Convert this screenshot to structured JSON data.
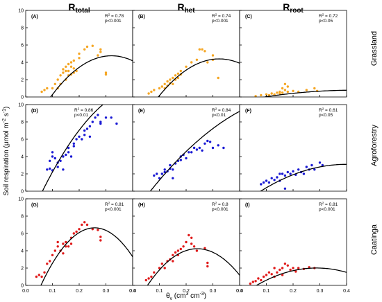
{
  "figure": {
    "column_titles": [
      {
        "main": "R",
        "sub": "total"
      },
      {
        "main": "R",
        "sub": "het"
      },
      {
        "main": "R",
        "sub": "root"
      }
    ],
    "row_labels": [
      "Grassland",
      "Agroforestry",
      "Caatinga"
    ],
    "ylabel": {
      "text": "Soil respiration (μmol m",
      "sup1": "-2",
      "mid": " s",
      "sup2": "-1",
      "end": ")"
    },
    "xlabel": {
      "main": "θ",
      "sub": "v",
      "mid": " (cm",
      "sup1": "3",
      "mid2": " cm",
      "sup2": "-3",
      "end": ")"
    },
    "colors": {
      "grassland": "#f5a623",
      "agroforestry": "#1a1ad4",
      "caatinga": "#e01b1b",
      "fit": "#000000"
    }
  },
  "chart_data": [
    {
      "type": "scatter",
      "row": 0,
      "col": 0,
      "panel_label": "(A)",
      "r2": "0.78",
      "p": "p<0.001",
      "color": "#f5a623",
      "xlim": [
        0,
        0.4
      ],
      "ylim": [
        0,
        10
      ],
      "xticks": [
        "0.0",
        "0.1",
        "0.2",
        "0.3",
        "0.4"
      ],
      "yticks": [
        "0",
        "2",
        "4",
        "6",
        "8",
        "10"
      ],
      "points": [
        [
          0.06,
          0.6
        ],
        [
          0.07,
          0.8
        ],
        [
          0.08,
          1.0
        ],
        [
          0.1,
          1.0
        ],
        [
          0.11,
          1.5
        ],
        [
          0.12,
          2.0
        ],
        [
          0.12,
          1.0
        ],
        [
          0.13,
          2.5
        ],
        [
          0.13,
          1.5
        ],
        [
          0.14,
          2.8
        ],
        [
          0.14,
          3.2
        ],
        [
          0.15,
          3.0
        ],
        [
          0.15,
          2.0
        ],
        [
          0.15,
          3.5
        ],
        [
          0.16,
          3.8
        ],
        [
          0.16,
          2.5
        ],
        [
          0.16,
          3.0
        ],
        [
          0.17,
          4.0
        ],
        [
          0.17,
          3.5
        ],
        [
          0.17,
          2.6
        ],
        [
          0.18,
          4.2
        ],
        [
          0.18,
          3.3
        ],
        [
          0.18,
          2.8
        ],
        [
          0.19,
          3.0
        ],
        [
          0.2,
          4.5
        ],
        [
          0.2,
          5.0
        ],
        [
          0.22,
          5.5
        ],
        [
          0.23,
          5.8
        ],
        [
          0.25,
          5.9
        ],
        [
          0.27,
          4.8
        ],
        [
          0.28,
          5.2
        ],
        [
          0.28,
          5.5
        ],
        [
          0.3,
          2.8
        ],
        [
          0.3,
          2.6
        ]
      ],
      "curve": {
        "a": -4.7,
        "b": 59.0,
        "c": -92.0,
        "xmin": 0.04,
        "xmax": 0.4
      }
    },
    {
      "type": "scatter",
      "row": 0,
      "col": 1,
      "panel_label": "(B)",
      "r2": "0.74",
      "p": "p<0.001",
      "color": "#f5a623",
      "xlim": [
        0,
        0.4
      ],
      "ylim": [
        0,
        10
      ],
      "xticks": [
        "0.0",
        "0.1",
        "0.2",
        "0.3",
        "0.4"
      ],
      "yticks": [
        "0",
        "2",
        "4",
        "6",
        "8",
        "10"
      ],
      "points": [
        [
          0.06,
          0.4
        ],
        [
          0.07,
          0.6
        ],
        [
          0.08,
          0.8
        ],
        [
          0.1,
          1.0
        ],
        [
          0.11,
          1.2
        ],
        [
          0.12,
          1.5
        ],
        [
          0.12,
          1.0
        ],
        [
          0.13,
          1.8
        ],
        [
          0.13,
          1.3
        ],
        [
          0.14,
          2.0
        ],
        [
          0.14,
          1.6
        ],
        [
          0.15,
          2.2
        ],
        [
          0.15,
          1.5
        ],
        [
          0.16,
          2.5
        ],
        [
          0.16,
          2.0
        ],
        [
          0.17,
          2.7
        ],
        [
          0.17,
          2.2
        ],
        [
          0.18,
          3.0
        ],
        [
          0.18,
          2.6
        ],
        [
          0.2,
          3.5
        ],
        [
          0.22,
          4.0
        ],
        [
          0.24,
          4.3
        ],
        [
          0.25,
          5.5
        ],
        [
          0.26,
          5.5
        ],
        [
          0.27,
          5.3
        ],
        [
          0.28,
          4.0
        ],
        [
          0.3,
          4.8
        ],
        [
          0.3,
          4.3
        ],
        [
          0.32,
          2.2
        ]
      ],
      "curve": {
        "a": -4.5,
        "b": 55.0,
        "c": -85.0,
        "xmin": 0.04,
        "xmax": 0.4
      }
    },
    {
      "type": "scatter",
      "row": 0,
      "col": 2,
      "panel_label": "(C)",
      "r2": "0.72",
      "p": "p<0.05",
      "color": "#f5a623",
      "xlim": [
        0,
        0.4
      ],
      "ylim": [
        0,
        10
      ],
      "xticks": [
        "0.0",
        "0.1",
        "0.2",
        "0.3",
        "0.4"
      ],
      "yticks": [
        "0",
        "2",
        "4",
        "6",
        "8",
        "10"
      ],
      "points": [
        [
          0.06,
          0.1
        ],
        [
          0.08,
          0.2
        ],
        [
          0.1,
          0.3
        ],
        [
          0.11,
          0.2
        ],
        [
          0.12,
          0.4
        ],
        [
          0.13,
          0.3
        ],
        [
          0.14,
          0.5
        ],
        [
          0.15,
          0.4
        ],
        [
          0.15,
          0.6
        ],
        [
          0.16,
          0.5
        ],
        [
          0.16,
          1.0
        ],
        [
          0.17,
          1.5
        ],
        [
          0.17,
          0.8
        ],
        [
          0.18,
          0.6
        ],
        [
          0.18,
          1.2
        ],
        [
          0.2,
          0.7
        ],
        [
          0.22,
          0.6
        ],
        [
          0.25,
          0.8
        ],
        [
          0.28,
          1.0
        ],
        [
          0.29,
          0.7
        ]
      ],
      "curve": {
        "a": -0.5,
        "b": 6.0,
        "c": -7.0,
        "xmin": 0.04,
        "xmax": 0.4
      }
    },
    {
      "type": "scatter",
      "row": 1,
      "col": 0,
      "panel_label": "(D)",
      "r2": "0.86",
      "p": "p<0.01",
      "color": "#1a1ad4",
      "xlim": [
        0,
        0.4
      ],
      "ylim": [
        0,
        10
      ],
      "xticks": [
        "0.0",
        "0.1",
        "0.2",
        "0.3",
        "0.4"
      ],
      "yticks": [
        "0",
        "2",
        "4",
        "6",
        "8",
        "10"
      ],
      "points": [
        [
          0.08,
          2.5
        ],
        [
          0.09,
          2.6
        ],
        [
          0.09,
          3.5
        ],
        [
          0.1,
          4.0
        ],
        [
          0.1,
          4.5
        ],
        [
          0.1,
          2.4
        ],
        [
          0.11,
          3.8
        ],
        [
          0.12,
          3.3
        ],
        [
          0.12,
          2.8
        ],
        [
          0.13,
          3.5
        ],
        [
          0.14,
          4.0
        ],
        [
          0.14,
          2.5
        ],
        [
          0.15,
          4.2
        ],
        [
          0.16,
          4.5
        ],
        [
          0.16,
          5.0
        ],
        [
          0.17,
          4.0
        ],
        [
          0.18,
          5.2
        ],
        [
          0.18,
          5.5
        ],
        [
          0.19,
          6.0
        ],
        [
          0.2,
          6.3
        ],
        [
          0.21,
          6.0
        ],
        [
          0.22,
          6.5
        ],
        [
          0.22,
          7.0
        ],
        [
          0.23,
          7.2
        ],
        [
          0.24,
          7.5
        ],
        [
          0.24,
          6.3
        ],
        [
          0.25,
          8.0
        ],
        [
          0.26,
          8.5
        ],
        [
          0.27,
          8.8
        ],
        [
          0.28,
          8.0
        ],
        [
          0.28,
          7.8
        ],
        [
          0.3,
          8.5
        ],
        [
          0.32,
          8.5
        ],
        [
          0.34,
          7.8
        ]
      ],
      "curve": {
        "a": -4.2,
        "b": 72.0,
        "c": -79.0,
        "xmin": 0.04,
        "xmax": 0.4
      }
    },
    {
      "type": "scatter",
      "row": 1,
      "col": 1,
      "panel_label": "(E)",
      "r2": "0.84",
      "p": "p<0.01",
      "color": "#1a1ad4",
      "xlim": [
        0,
        0.4
      ],
      "ylim": [
        0,
        10
      ],
      "xticks": [
        "0.0",
        "0.1",
        "0.2",
        "0.3",
        "0.4"
      ],
      "yticks": [
        "0",
        "2",
        "4",
        "6",
        "8",
        "10"
      ],
      "points": [
        [
          0.08,
          1.8
        ],
        [
          0.09,
          2.0
        ],
        [
          0.1,
          1.5
        ],
        [
          0.11,
          2.0
        ],
        [
          0.12,
          2.2
        ],
        [
          0.12,
          2.5
        ],
        [
          0.13,
          2.3
        ],
        [
          0.14,
          3.0
        ],
        [
          0.14,
          2.6
        ],
        [
          0.15,
          2.5
        ],
        [
          0.15,
          1.5
        ],
        [
          0.16,
          3.2
        ],
        [
          0.17,
          3.5
        ],
        [
          0.18,
          3.6
        ],
        [
          0.18,
          4.0
        ],
        [
          0.19,
          4.2
        ],
        [
          0.2,
          3.8
        ],
        [
          0.21,
          4.5
        ],
        [
          0.22,
          4.5
        ],
        [
          0.23,
          5.0
        ],
        [
          0.24,
          4.8
        ],
        [
          0.25,
          5.0
        ],
        [
          0.26,
          4.7
        ],
        [
          0.27,
          5.5
        ],
        [
          0.28,
          5.8
        ],
        [
          0.29,
          5.7
        ],
        [
          0.3,
          5.0
        ],
        [
          0.32,
          5.3
        ],
        [
          0.34,
          5.0
        ]
      ],
      "curve": {
        "a": -2.7,
        "b": 43.0,
        "c": -33.0,
        "xmin": 0.04,
        "xmax": 0.4
      }
    },
    {
      "type": "scatter",
      "row": 1,
      "col": 2,
      "panel_label": "(F)",
      "r2": "0.61",
      "p": "p<0.05",
      "color": "#1a1ad4",
      "xlim": [
        0,
        0.4
      ],
      "ylim": [
        0,
        10
      ],
      "xticks": [
        "0.0",
        "0.1",
        "0.2",
        "0.3",
        "0.4"
      ],
      "yticks": [
        "0",
        "2",
        "4",
        "6",
        "8",
        "10"
      ],
      "points": [
        [
          0.08,
          0.8
        ],
        [
          0.09,
          1.0
        ],
        [
          0.1,
          1.2
        ],
        [
          0.11,
          1.0
        ],
        [
          0.12,
          1.5
        ],
        [
          0.13,
          1.3
        ],
        [
          0.14,
          1.6
        ],
        [
          0.15,
          2.0
        ],
        [
          0.15,
          1.2
        ],
        [
          0.16,
          2.0
        ],
        [
          0.17,
          1.8
        ],
        [
          0.17,
          0.3
        ],
        [
          0.18,
          2.2
        ],
        [
          0.19,
          2.0
        ],
        [
          0.2,
          2.3
        ],
        [
          0.21,
          1.9
        ],
        [
          0.22,
          2.5
        ],
        [
          0.23,
          2.2
        ],
        [
          0.24,
          2.0
        ],
        [
          0.25,
          2.8
        ],
        [
          0.26,
          2.5
        ],
        [
          0.27,
          3.0
        ],
        [
          0.28,
          2.5
        ],
        [
          0.3,
          3.3
        ],
        [
          0.31,
          3.0
        ]
      ],
      "curve": {
        "a": -1.7,
        "b": 24.0,
        "c": -30.0,
        "xmin": 0.04,
        "xmax": 0.4
      }
    },
    {
      "type": "scatter",
      "row": 2,
      "col": 0,
      "panel_label": "(G)",
      "r2": "0.81",
      "p": "p<0.001",
      "color": "#e01b1b",
      "xlim": [
        0,
        0.4
      ],
      "ylim": [
        0,
        10
      ],
      "xticks": [
        "0.0",
        "0.1",
        "0.2",
        "0.3",
        "0.4"
      ],
      "yticks": [
        "0",
        "2",
        "4",
        "6",
        "8",
        "10"
      ],
      "points": [
        [
          0.04,
          1.0
        ],
        [
          0.05,
          1.2
        ],
        [
          0.06,
          1.0
        ],
        [
          0.07,
          1.5
        ],
        [
          0.08,
          2.5
        ],
        [
          0.09,
          2.8
        ],
        [
          0.1,
          3.5
        ],
        [
          0.11,
          4.0
        ],
        [
          0.12,
          4.5
        ],
        [
          0.12,
          5.0
        ],
        [
          0.13,
          4.0
        ],
        [
          0.14,
          3.7
        ],
        [
          0.14,
          4.8
        ],
        [
          0.15,
          4.5
        ],
        [
          0.15,
          5.0
        ],
        [
          0.16,
          4.5
        ],
        [
          0.17,
          4.8
        ],
        [
          0.17,
          5.5
        ],
        [
          0.18,
          6.0
        ],
        [
          0.19,
          6.2
        ],
        [
          0.2,
          6.5
        ],
        [
          0.21,
          7.0
        ],
        [
          0.22,
          7.3
        ],
        [
          0.23,
          7.0
        ],
        [
          0.25,
          6.5
        ],
        [
          0.27,
          6.4
        ],
        [
          0.28,
          5.6
        ],
        [
          0.28,
          5.2
        ]
      ],
      "curve": {
        "a": -4.3,
        "b": 85.0,
        "c": -165.0,
        "xmin": 0.04,
        "xmax": 0.4
      }
    },
    {
      "type": "scatter",
      "row": 2,
      "col": 1,
      "panel_label": "(H)",
      "r2": "0.8",
      "p": "p<0.001",
      "color": "#e01b1b",
      "xlim": [
        0,
        0.4
      ],
      "ylim": [
        0,
        10
      ],
      "xticks": [
        "0.0",
        "0.1",
        "0.2",
        "0.3",
        "0.4"
      ],
      "yticks": [
        "0",
        "2",
        "4",
        "6",
        "8",
        "10"
      ],
      "points": [
        [
          0.05,
          0.6
        ],
        [
          0.06,
          0.8
        ],
        [
          0.07,
          1.0
        ],
        [
          0.08,
          1.5
        ],
        [
          0.1,
          2.0
        ],
        [
          0.11,
          2.5
        ],
        [
          0.12,
          2.0
        ],
        [
          0.13,
          2.8
        ],
        [
          0.14,
          3.0
        ],
        [
          0.15,
          3.5
        ],
        [
          0.15,
          2.8
        ],
        [
          0.16,
          3.8
        ],
        [
          0.17,
          3.5
        ],
        [
          0.17,
          4.0
        ],
        [
          0.18,
          4.2
        ],
        [
          0.19,
          4.5
        ],
        [
          0.2,
          5.0
        ],
        [
          0.21,
          5.8
        ],
        [
          0.22,
          5.5
        ],
        [
          0.22,
          4.8
        ],
        [
          0.23,
          4.5
        ],
        [
          0.24,
          4.0
        ],
        [
          0.27,
          4.3
        ],
        [
          0.28,
          2.6
        ],
        [
          0.28,
          2.2
        ]
      ],
      "curve": {
        "a": -2.9,
        "b": 59.0,
        "c": -122.0,
        "xmin": 0.04,
        "xmax": 0.4
      }
    },
    {
      "type": "scatter",
      "row": 2,
      "col": 2,
      "panel_label": "(I)",
      "r2": "0.81",
      "p": "p<0.001",
      "color": "#e01b1b",
      "xlim": [
        0,
        0.4
      ],
      "ylim": [
        0,
        10
      ],
      "xticks": [
        "0.0",
        "0.1",
        "0.2",
        "0.3",
        "0.4"
      ],
      "yticks": [
        "0",
        "2",
        "4",
        "6",
        "8",
        "10"
      ],
      "points": [
        [
          0.04,
          0.2
        ],
        [
          0.05,
          0.4
        ],
        [
          0.06,
          0.5
        ],
        [
          0.07,
          0.8
        ],
        [
          0.08,
          0.6
        ],
        [
          0.09,
          1.0
        ],
        [
          0.1,
          1.2
        ],
        [
          0.11,
          1.5
        ],
        [
          0.12,
          1.3
        ],
        [
          0.13,
          1.0
        ],
        [
          0.13,
          2.0
        ],
        [
          0.14,
          1.5
        ],
        [
          0.15,
          1.8
        ],
        [
          0.16,
          2.0
        ],
        [
          0.16,
          1.2
        ],
        [
          0.17,
          2.5
        ],
        [
          0.18,
          2.3
        ],
        [
          0.19,
          1.8
        ],
        [
          0.2,
          2.0
        ],
        [
          0.21,
          1.6
        ],
        [
          0.22,
          2.0
        ],
        [
          0.24,
          1.9
        ],
        [
          0.26,
          2.1
        ],
        [
          0.28,
          2.0
        ]
      ],
      "curve": {
        "a": -1.3,
        "b": 23.0,
        "c": -40.0,
        "xmin": 0.04,
        "xmax": 0.4
      }
    }
  ]
}
